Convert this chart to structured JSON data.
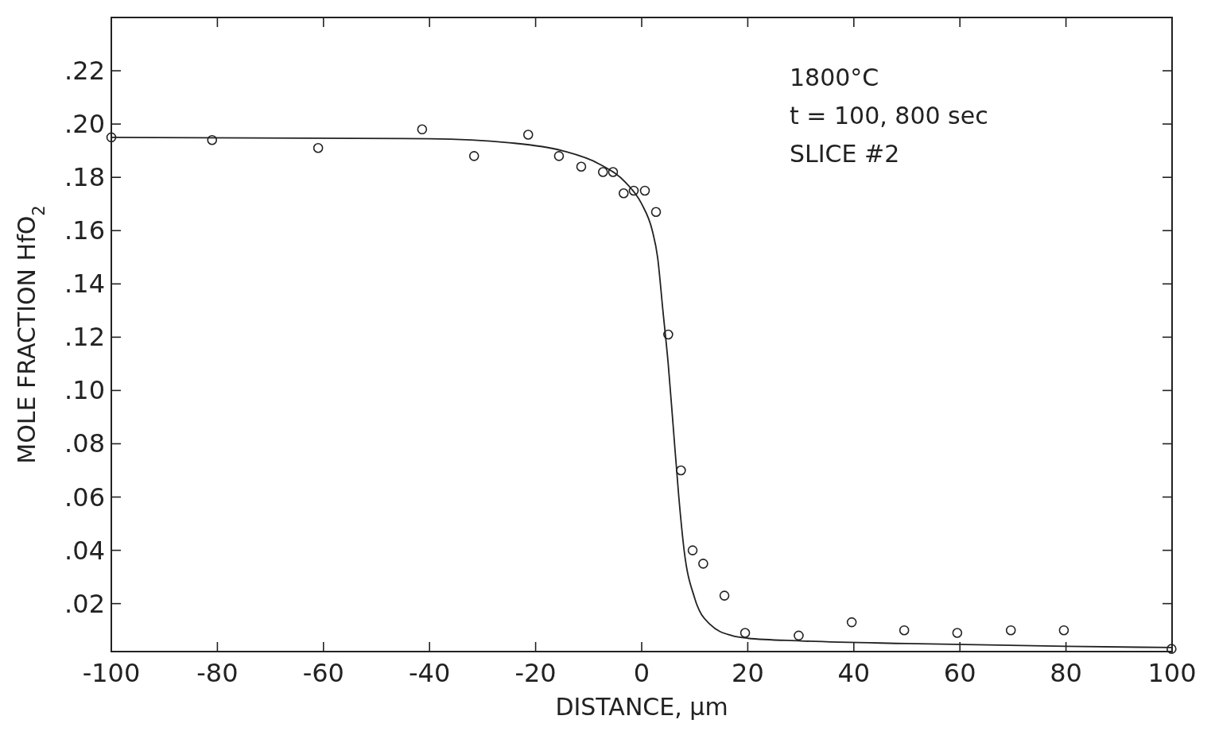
{
  "chart_data": {
    "type": "scatter",
    "xlabel": "DISTANCE, μm",
    "ylabel": "MOLE FRACTION HfO$_{2}$",
    "annotations": [
      "1800°C",
      "t = 100, 800 sec",
      "SLICE #2"
    ],
    "xlim": [
      -100,
      100
    ],
    "xticks": [
      -100,
      -80,
      -60,
      -40,
      -20,
      0,
      20,
      40,
      60,
      80,
      100
    ],
    "ylim": [
      0.002,
      0.24
    ],
    "yticks": [
      {
        "value": 0.02,
        "label": ".02"
      },
      {
        "value": 0.04,
        "label": ".04"
      },
      {
        "value": 0.06,
        "label": ".06"
      },
      {
        "value": 0.08,
        "label": ".08"
      },
      {
        "value": 0.1,
        "label": ".10"
      },
      {
        "value": 0.12,
        "label": ".12"
      },
      {
        "value": 0.14,
        "label": ".14"
      },
      {
        "value": 0.16,
        "label": ".16"
      },
      {
        "value": 0.18,
        "label": ".18"
      },
      {
        "value": 0.2,
        "label": ".20"
      },
      {
        "value": 0.22,
        "label": ".22"
      }
    ],
    "grid": false,
    "marker": "circle",
    "series": [
      {
        "color": "#222222",
        "x": [
          -100,
          -81,
          -61,
          -41.4,
          -31.6,
          -21.4,
          -15.6,
          -11.4,
          -7.3,
          -5.4,
          -3.4,
          -1.5,
          0.6,
          2.7,
          5,
          7.4,
          9.6,
          11.6,
          15.6,
          19.5,
          29.6,
          39.6,
          49.5,
          59.5,
          69.6,
          79.6,
          99.9
        ],
        "values": [
          0.195,
          0.194,
          0.191,
          0.198,
          0.188,
          0.196,
          0.188,
          0.184,
          0.182,
          0.182,
          0.174,
          0.175,
          0.175,
          0.167,
          0.121,
          0.07,
          0.04,
          0.035,
          0.023,
          0.009,
          0.008,
          0.013,
          0.01,
          0.009,
          0.01,
          0.01,
          0.003
        ]
      },
      {
        "type": "line",
        "color": "#222222",
        "marker": "none",
        "x": [
          -100,
          -40,
          -25,
          -15,
          -8,
          -3,
          0,
          2,
          3,
          4,
          5,
          6,
          7,
          8,
          10,
          13,
          17,
          20,
          30,
          50,
          80,
          100
        ],
        "values": [
          0.195,
          0.1945,
          0.193,
          0.19,
          0.185,
          0.178,
          0.17,
          0.16,
          0.15,
          0.13,
          0.11,
          0.085,
          0.06,
          0.04,
          0.022,
          0.012,
          0.008,
          0.007,
          0.006,
          0.005,
          0.004,
          0.0035
        ]
      }
    ]
  }
}
